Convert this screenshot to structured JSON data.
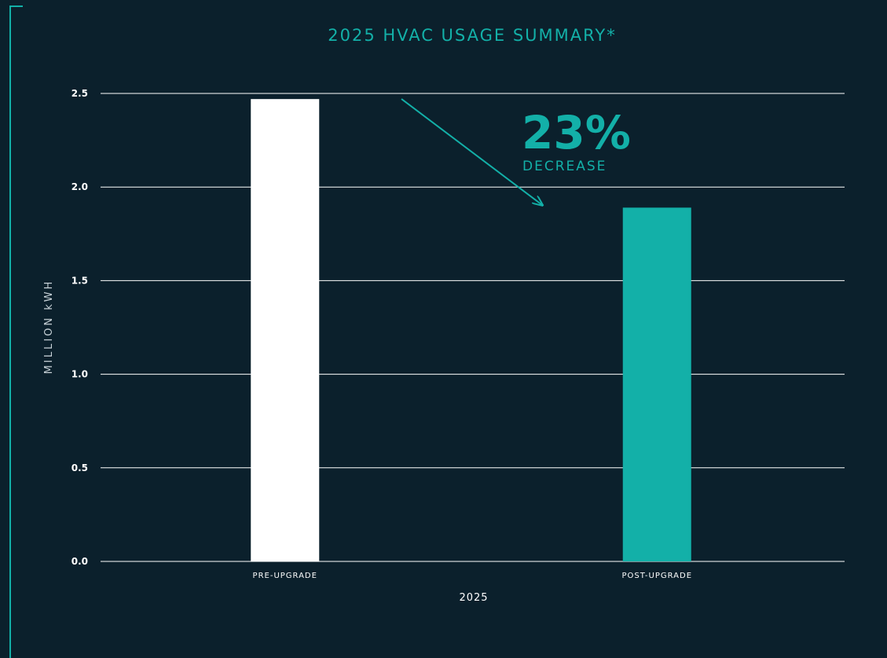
{
  "chart_data": {
    "type": "bar",
    "title": "2025 HVAC USAGE SUMMARY*",
    "categories": [
      "PRE-UPGRADE",
      "POST-UPGRADE"
    ],
    "values": [
      2.47,
      1.89
    ],
    "xlabel": "2025",
    "ylabel": "MILLION kWH",
    "ylim": [
      0,
      2.5
    ],
    "yticks": [
      "0.0",
      "0.5",
      "1.0",
      "1.5",
      "2.0",
      "2.5"
    ],
    "grid": true,
    "bar_colors": [
      "#ffffff",
      "#13b0a8"
    ],
    "annotation": {
      "value": "23%",
      "label": "DECREASE"
    }
  },
  "colors": {
    "background": "#0b202c",
    "accent": "#13b0a8",
    "gridline": "#ffffff",
    "text": "#ffffff"
  }
}
